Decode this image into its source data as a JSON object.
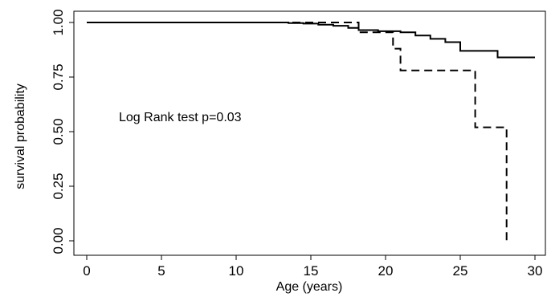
{
  "chart_data": {
    "type": "line",
    "title": "",
    "xlabel": "Age (years)",
    "ylabel": "survival probability",
    "xlim": [
      0,
      30
    ],
    "ylim": [
      0,
      1
    ],
    "xticks": [
      "0",
      "5",
      "10",
      "15",
      "20",
      "25",
      "30"
    ],
    "yticks": [
      "0.00",
      "0.25",
      "0.50",
      "0.75",
      "1.00"
    ],
    "grid": false,
    "legend": "none",
    "annotation": "Log Rank test p=0.03",
    "series": [
      {
        "style": "solid",
        "color": "#000000",
        "x": [
          0,
          12.5,
          13.5,
          14.5,
          15.5,
          16.5,
          17.5,
          18.2,
          19.5,
          21,
          22,
          23,
          24,
          25,
          27.5,
          30
        ],
        "y": [
          1.0,
          1.0,
          0.997,
          0.995,
          0.99,
          0.985,
          0.975,
          0.965,
          0.96,
          0.955,
          0.94,
          0.925,
          0.91,
          0.87,
          0.84,
          0.84
        ]
      },
      {
        "style": "dashed",
        "color": "#000000",
        "x": [
          0,
          12.5,
          18.2,
          20.5,
          21,
          26,
          28.1
        ],
        "y": [
          1.0,
          1.0,
          0.955,
          0.88,
          0.78,
          0.52,
          0.0
        ]
      }
    ]
  }
}
